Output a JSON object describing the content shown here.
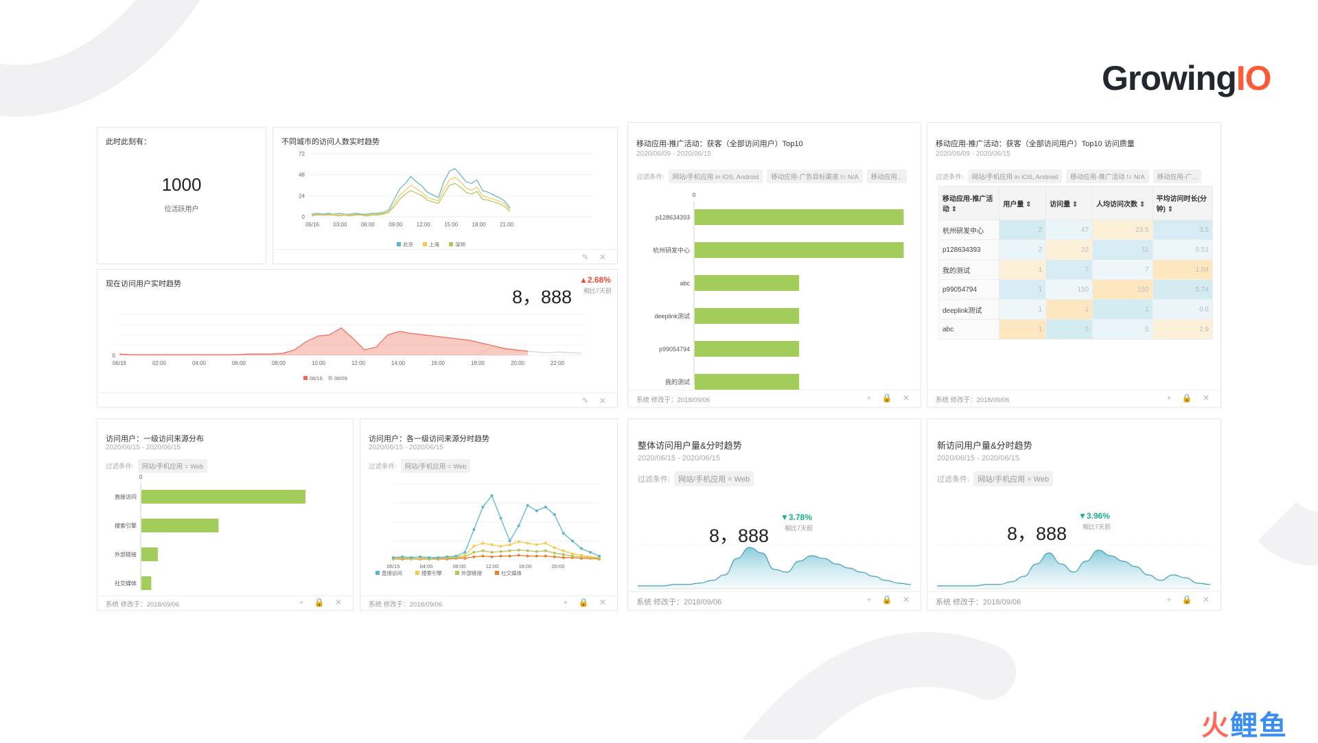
{
  "brand": {
    "logo_main": "Growing",
    "logo_io": "IO",
    "watermark_a": "火",
    "watermark_b": "鲤",
    "watermark_c": "鱼"
  },
  "colors": {
    "bar_green": "#a3cd5a",
    "red": "#f04a3a",
    "teal": "#5ab6c9",
    "yellow": "#f7c850",
    "olive": "#b6c25a",
    "orange": "#ef7a2c"
  },
  "active_card": {
    "title": "此时此刻有：",
    "value": "1000",
    "label": "位活跃用户"
  },
  "city_card": {
    "title": "不同城市的访问人数实时趋势",
    "chart_data": {
      "type": "line",
      "y_ticks": [
        "72",
        "48",
        "24",
        "0"
      ],
      "x_ticks": [
        "06/16",
        "03:00",
        "06:00",
        "09:00",
        "12:00",
        "15:00",
        "18:00",
        "21:00"
      ],
      "ylim": [
        0,
        72
      ],
      "series": [
        {
          "name": "北京",
          "color": "#5ab6c9",
          "values": [
            3,
            4,
            3,
            4,
            3,
            4,
            3,
            3,
            4,
            3,
            3,
            4,
            4,
            5,
            8,
            20,
            32,
            38,
            46,
            40,
            35,
            28,
            25,
            22,
            40,
            52,
            55,
            48,
            40,
            38,
            42,
            30,
            28,
            25,
            22,
            18,
            10
          ]
        },
        {
          "name": "上海",
          "color": "#f7c850",
          "values": [
            2,
            3,
            2,
            3,
            3,
            2,
            3,
            2,
            3,
            2,
            2,
            3,
            3,
            4,
            6,
            15,
            25,
            30,
            36,
            32,
            28,
            22,
            20,
            18,
            32,
            42,
            45,
            40,
            33,
            30,
            34,
            24,
            22,
            20,
            18,
            15,
            8
          ]
        },
        {
          "name": "深圳",
          "color": "#b6c25a",
          "values": [
            1,
            2,
            2,
            2,
            2,
            1,
            2,
            1,
            2,
            2,
            1,
            2,
            2,
            3,
            5,
            12,
            20,
            26,
            30,
            27,
            24,
            19,
            17,
            15,
            26,
            36,
            38,
            34,
            28,
            26,
            29,
            20,
            19,
            17,
            15,
            12,
            6
          ]
        }
      ]
    }
  },
  "realtime_card": {
    "title": "现在访问用户实时趋势",
    "value": "8，888",
    "delta": "▲2.68%",
    "compare": "相比7天前",
    "chart_data": {
      "type": "area",
      "y_ticks": [
        "0"
      ],
      "x_ticks": [
        "06/16",
        "02:00",
        "04:00",
        "06:00",
        "08:00",
        "10:00",
        "12:00",
        "14:00",
        "16:00",
        "18:00",
        "20:00",
        "22:00"
      ],
      "ylim": [
        0,
        60
      ],
      "series": [
        {
          "name": "06/16",
          "color": "#f06a5a",
          "values": [
            2,
            1,
            1,
            1,
            1,
            1,
            1,
            1,
            1,
            1,
            1,
            2,
            2,
            2,
            3,
            8,
            20,
            28,
            30,
            40,
            25,
            8,
            12,
            30,
            35,
            32,
            30,
            28,
            26,
            24,
            22,
            18,
            14,
            10,
            8,
            6
          ]
        },
        {
          "name": "06/09",
          "color": "#cccccc",
          "values": [
            1,
            1,
            1,
            1,
            1,
            1,
            1,
            1,
            1,
            1,
            1,
            1,
            1,
            1,
            1,
            1,
            1,
            1,
            1,
            1,
            1,
            1,
            1,
            1,
            1,
            1,
            1,
            1,
            1,
            1,
            1,
            1,
            1,
            12,
            10,
            8,
            6,
            5,
            4,
            5,
            4,
            3
          ]
        }
      ]
    }
  },
  "top10_card": {
    "title": "移动应用-推广活动：获客（全部访问用户）Top10",
    "date": "2020/06/09 - 2020/06/15",
    "filter_label": "过滤条件:",
    "filters": [
      "网站/手机应用 in iOS, Android",
      "移动应用-广告目标渠道 != N/A",
      "移动应用..."
    ],
    "footer": "系统 修改于：2018/09/06",
    "chart_data": {
      "type": "bar",
      "orientation": "horizontal",
      "axis_zero": "0",
      "categories": [
        "p128634393",
        "杭州研发中心",
        "abc",
        "deeplink测试",
        "p99054794",
        "我的测试"
      ],
      "values": [
        2,
        2,
        1,
        1,
        1,
        1
      ],
      "xlim": [
        0,
        2.05
      ]
    }
  },
  "quality_card": {
    "title": "移动应用-推广活动：获客（全部访问用户）Top10 访问质量",
    "date": "2020/06/09 - 2020/06/15",
    "filter_label": "过滤条件:",
    "filters": [
      "网站/手机应用 in iOS, Android",
      "移动应用-推广活动 != N/A",
      "移动应用-广..."
    ],
    "footer": "系统 修改于：2018/09/06",
    "headers": [
      "移动应用-推广活动 ⇕",
      "用户量 ⇕",
      "访问量 ⇕",
      "人均访问次数 ⇕",
      "平均访问时长(分钟) ⇕"
    ],
    "rows": [
      [
        "杭州研发中心",
        "2",
        "47",
        "23.5",
        "3.5"
      ],
      [
        "p128634393",
        "2",
        "22",
        "11",
        "0.51"
      ],
      [
        "我的测试",
        "1",
        "7",
        "7",
        "1.04"
      ],
      [
        "p99054794",
        "1",
        "150",
        "150",
        "5.74"
      ],
      [
        "deeplink测试",
        "1",
        "1",
        "1",
        "0.6"
      ],
      [
        "abc",
        "1",
        "5",
        "5",
        "2.9"
      ]
    ]
  },
  "source_card": {
    "title": "访问用户：一级访问来源分布",
    "date": "2020/06/15 - 2020/06/15",
    "filter_label": "过滤条件:",
    "filters": [
      "网站/手机应用 = Web"
    ],
    "footer": "系统 修改于：2018/09/06",
    "chart_data": {
      "type": "bar",
      "orientation": "horizontal",
      "axis_zero": "0",
      "categories": [
        "直接访问",
        "搜索引擎",
        "外部链接",
        "社交媒体"
      ],
      "values": [
        100,
        47,
        10,
        6
      ],
      "xlim": [
        0,
        110
      ]
    }
  },
  "source_trend_card": {
    "title": "访问用户：各一级访问来源分时趋势",
    "date": "2020/06/15 - 2020/06/15",
    "filter_label": "过滤条件:",
    "filters": [
      "网站/手机应用 = Web"
    ],
    "footer": "系统 修改于：2018/09/06",
    "chart_data": {
      "type": "line",
      "x_ticks": [
        "06/15",
        "04:00",
        "08:00",
        "12:00",
        "16:00",
        "20:00"
      ],
      "ylim": [
        0,
        100
      ],
      "series": [
        {
          "name": "直接访问",
          "color": "#5ab6c9",
          "values": [
            3,
            4,
            3,
            4,
            3,
            3,
            4,
            5,
            10,
            40,
            70,
            85,
            55,
            25,
            45,
            72,
            65,
            70,
            60,
            35,
            25,
            15,
            10,
            5
          ]
        },
        {
          "name": "搜索引擎",
          "color": "#f7c850",
          "values": [
            2,
            3,
            2,
            2,
            3,
            2,
            3,
            4,
            6,
            18,
            22,
            20,
            18,
            20,
            24,
            22,
            20,
            22,
            16,
            12,
            8,
            6,
            4,
            3
          ]
        },
        {
          "name": "外部链接",
          "color": "#b6c25a",
          "values": [
            1,
            2,
            1,
            2,
            1,
            2,
            2,
            3,
            4,
            10,
            12,
            10,
            11,
            12,
            13,
            12,
            11,
            12,
            9,
            7,
            5,
            4,
            3,
            2
          ]
        },
        {
          "name": "社交媒体",
          "color": "#ef7a2c",
          "values": [
            1,
            1,
            1,
            1,
            1,
            1,
            1,
            2,
            2,
            4,
            5,
            4,
            5,
            5,
            6,
            5,
            5,
            5,
            4,
            3,
            3,
            2,
            2,
            1
          ]
        }
      ]
    }
  },
  "total_card": {
    "title": "整体访问用户量&分时趋势",
    "date": "2020/06/15 - 2020/06/15",
    "filter_label": "过滤条件:",
    "filters": [
      "网站/手机应用 = Web"
    ],
    "value": "8，888",
    "delta": "▼3.78%",
    "compare": "相比7天前",
    "footer": "系统 修改于：2018/09/06",
    "chart_data": {
      "type": "area",
      "values": [
        2,
        2,
        2,
        3,
        3,
        4,
        6,
        10,
        22,
        30,
        26,
        14,
        12,
        20,
        24,
        22,
        18,
        15,
        12,
        9,
        6,
        4,
        3
      ]
    }
  },
  "new_card": {
    "title": "新访问用户量&分时趋势",
    "date": "2020/06/15 - 2020/06/15",
    "filter_label": "过滤条件:",
    "filters": [
      "网站/手机应用 = Web"
    ],
    "value": "8，888",
    "delta": "▼3.96%",
    "compare": "相比7天前",
    "footer": "系统 修改于：2018/09/06",
    "chart_data": {
      "type": "area",
      "values": [
        2,
        2,
        2,
        2,
        3,
        3,
        5,
        9,
        18,
        26,
        18,
        12,
        20,
        28,
        24,
        20,
        16,
        10,
        6,
        10,
        8,
        4,
        3
      ]
    }
  }
}
